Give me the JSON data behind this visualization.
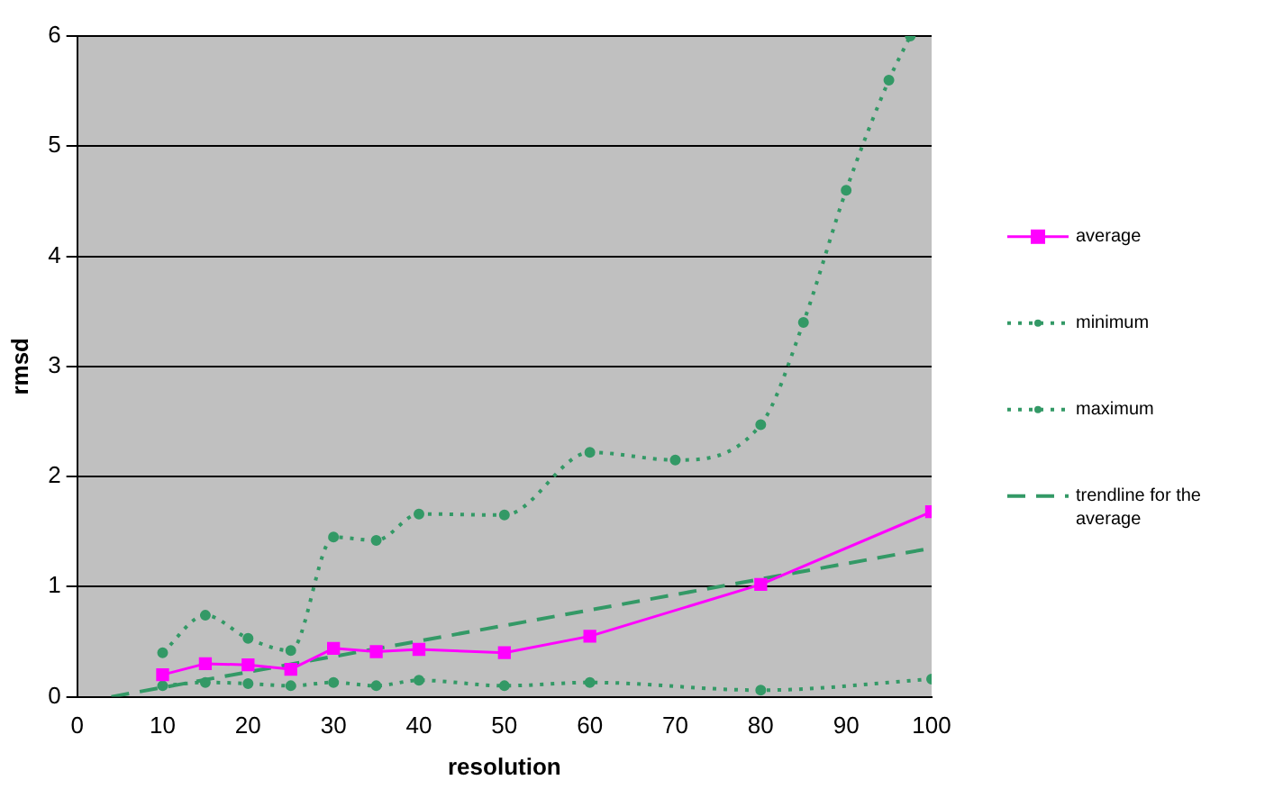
{
  "chart_data": {
    "type": "line",
    "xlabel": "resolution",
    "ylabel": "rmsd",
    "xlim": [
      0,
      100
    ],
    "xticks": [
      0,
      10,
      20,
      30,
      40,
      50,
      60,
      70,
      80,
      90,
      100
    ],
    "ylim": [
      0,
      6
    ],
    "yticks": [
      0,
      1,
      2,
      3,
      4,
      5,
      6
    ],
    "grid": "y",
    "legend": "right",
    "series": [
      {
        "name": "average",
        "color": "#ff00ff",
        "marker": "square",
        "line_style": "solid",
        "x": [
          10,
          15,
          20,
          25,
          30,
          35,
          40,
          50,
          60,
          80,
          100
        ],
        "values": [
          0.2,
          0.3,
          0.29,
          0.25,
          0.44,
          0.41,
          0.43,
          0.4,
          0.55,
          1.02,
          1.68
        ]
      },
      {
        "name": "minimum",
        "color": "#339966",
        "marker": "circle",
        "line_style": "dotted",
        "x": [
          10,
          15,
          20,
          25,
          30,
          35,
          40,
          50,
          60,
          80,
          100
        ],
        "values": [
          0.1,
          0.13,
          0.12,
          0.1,
          0.13,
          0.1,
          0.15,
          0.1,
          0.13,
          0.06,
          0.16
        ]
      },
      {
        "name": "maximum",
        "color": "#339966",
        "marker": "circle",
        "line_style": "dotted",
        "x": [
          10,
          15,
          20,
          25,
          30,
          35,
          40,
          50,
          60,
          70,
          80,
          85,
          90,
          95,
          97.5
        ],
        "values": [
          0.4,
          0.74,
          0.53,
          0.42,
          1.45,
          1.42,
          1.66,
          1.65,
          2.22,
          2.15,
          2.47,
          3.4,
          4.6,
          5.6,
          6
        ]
      },
      {
        "name": "trendline for the average",
        "color": "#339966",
        "type": "line",
        "marker": "none",
        "line_style": "dashed",
        "x": [
          4,
          100
        ],
        "values": [
          0,
          1.35
        ]
      }
    ]
  }
}
